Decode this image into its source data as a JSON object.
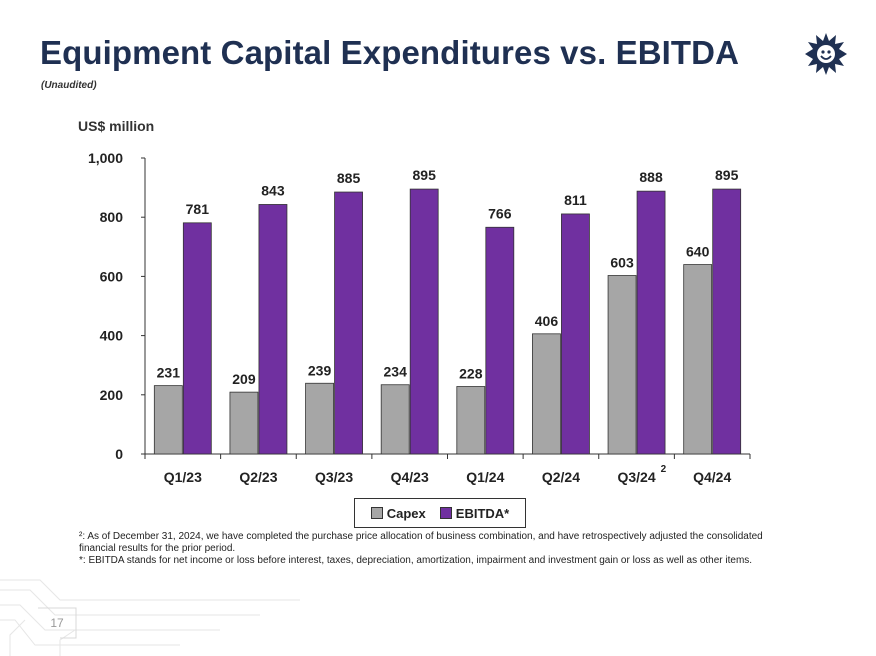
{
  "header": {
    "title": "Equipment Capital Expenditures vs. EBITDA",
    "subtitle": "(Unaudited)",
    "logo_icon": "sun-face-logo-icon"
  },
  "colors": {
    "title": "#1f3052",
    "capex": "#a6a6a6",
    "ebitda": "#7030a0"
  },
  "chart_data": {
    "type": "bar",
    "ylabel": "US$ million",
    "ylim": [
      0,
      1000
    ],
    "yticks": [
      "0",
      "200",
      "400",
      "600",
      "800",
      "1,000"
    ],
    "categories": [
      "Q1/23",
      "Q2/23",
      "Q3/23",
      "Q4/23",
      "Q1/24",
      "Q2/24",
      "Q3/24",
      "Q4/24"
    ],
    "category_superscripts": [
      "",
      "",
      "",
      "",
      "",
      "",
      "2",
      ""
    ],
    "series": [
      {
        "name": "Capex",
        "values": [
          231,
          209,
          239,
          234,
          228,
          406,
          603,
          640
        ]
      },
      {
        "name": "EBITDA*",
        "values": [
          781,
          843,
          885,
          895,
          766,
          811,
          888,
          895
        ]
      }
    ],
    "legend": "bottom-center"
  },
  "footnotes": {
    "note1": "²: As of December 31, 2024, we have completed the purchase price allocation of business combination, and have retrospectively adjusted the consolidated financial results for the prior period.",
    "note2": "*: EBITDA stands for net income or loss before interest, taxes, depreciation, amortization, impairment and investment gain or loss as well as other items."
  },
  "footer": {
    "page_number": "17"
  }
}
